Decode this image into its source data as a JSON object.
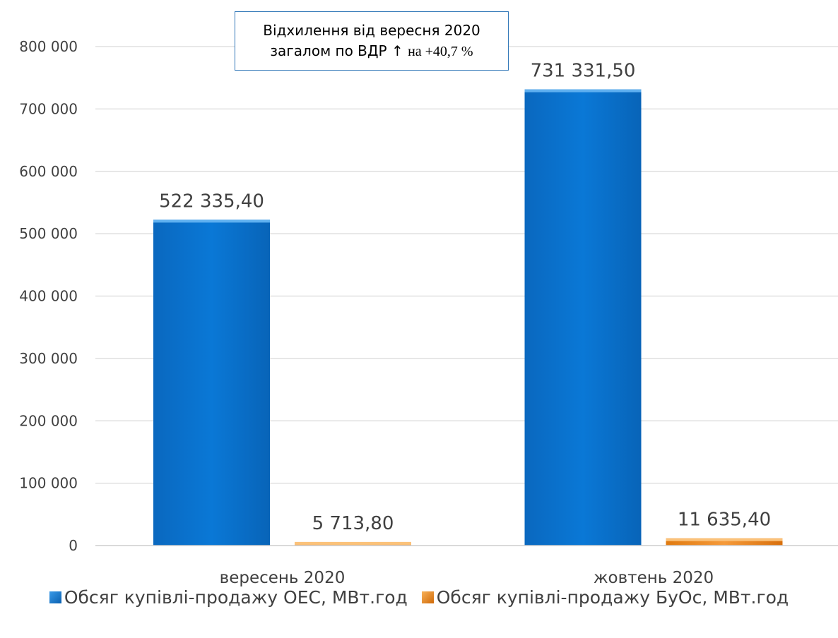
{
  "chart_data": {
    "type": "bar",
    "categories": [
      "вересень 2020",
      "жовтень 2020"
    ],
    "series": [
      {
        "name": "Обсяг купівлі-продажу ОЕС, МВт.год",
        "values": [
          522335.4,
          731331.5
        ],
        "labels": [
          "522 335,40",
          "731 331,50"
        ],
        "color": "#0a74d0"
      },
      {
        "name": "Обсяг купівлі-продажу БуОс, МВт.год",
        "values": [
          5713.8,
          11635.4
        ],
        "labels": [
          "5 713,80",
          "11 635,40"
        ],
        "color": "#f0891e"
      }
    ],
    "yticks": [
      {
        "value": 0,
        "label": "0"
      },
      {
        "value": 100000,
        "label": "100 000"
      },
      {
        "value": 200000,
        "label": "200 000"
      },
      {
        "value": 300000,
        "label": "300 000"
      },
      {
        "value": 400000,
        "label": "400 000"
      },
      {
        "value": 500000,
        "label": "500 000"
      },
      {
        "value": 600000,
        "label": "600 000"
      },
      {
        "value": 700000,
        "label": "700 000"
      },
      {
        "value": 800000,
        "label": "800 000"
      }
    ],
    "ylim": [
      0,
      800000
    ],
    "grid": true,
    "legend_position": "bottom",
    "annotation": {
      "line1": "Відхилення від вересня 2020",
      "line2_prefix": "загалом по ВДР ↑",
      "line2_suffix": "на +40,7 %"
    }
  }
}
